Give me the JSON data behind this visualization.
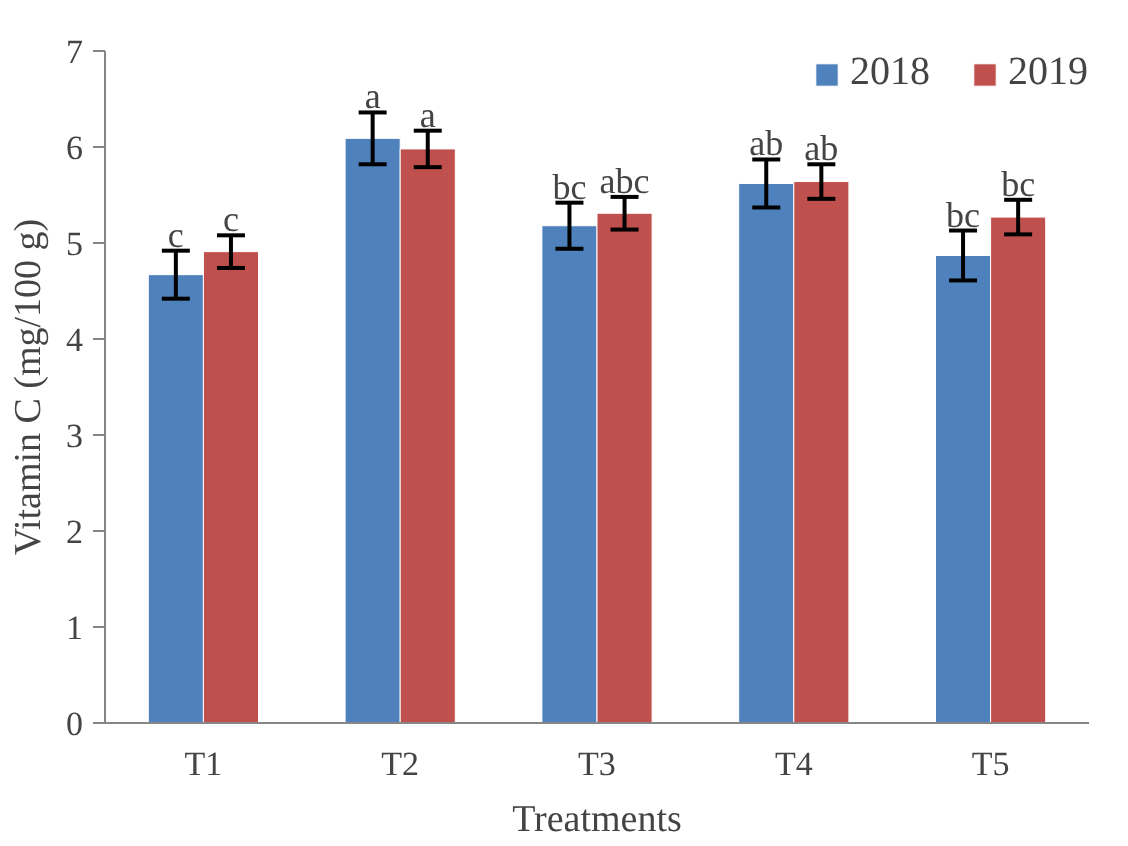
{
  "chart_data": {
    "type": "bar",
    "xlabel": "Treatments",
    "ylabel": "Vitamin C (mg/100 g)",
    "categories": [
      "T1",
      "T2",
      "T3",
      "T4",
      "T5"
    ],
    "series": [
      {
        "name": "2018",
        "color": "#4f81bd",
        "values": [
          4.67,
          6.09,
          5.18,
          5.62,
          4.87
        ],
        "errors": [
          0.25,
          0.27,
          0.24,
          0.25,
          0.26
        ],
        "value_labels": [
          "c",
          "a",
          "bc",
          "ab",
          "bc"
        ]
      },
      {
        "name": "2019",
        "color": "#c0504d",
        "values": [
          4.91,
          5.98,
          5.31,
          5.64,
          5.27
        ],
        "errors": [
          0.17,
          0.19,
          0.17,
          0.18,
          0.18
        ],
        "value_labels": [
          "c",
          "a",
          "abc",
          "ab",
          "bc"
        ]
      }
    ],
    "ylim": [
      0,
      7
    ],
    "yticks": [
      0,
      1,
      2,
      3,
      4,
      5,
      6,
      7
    ],
    "grid": false,
    "legend": "top right"
  }
}
